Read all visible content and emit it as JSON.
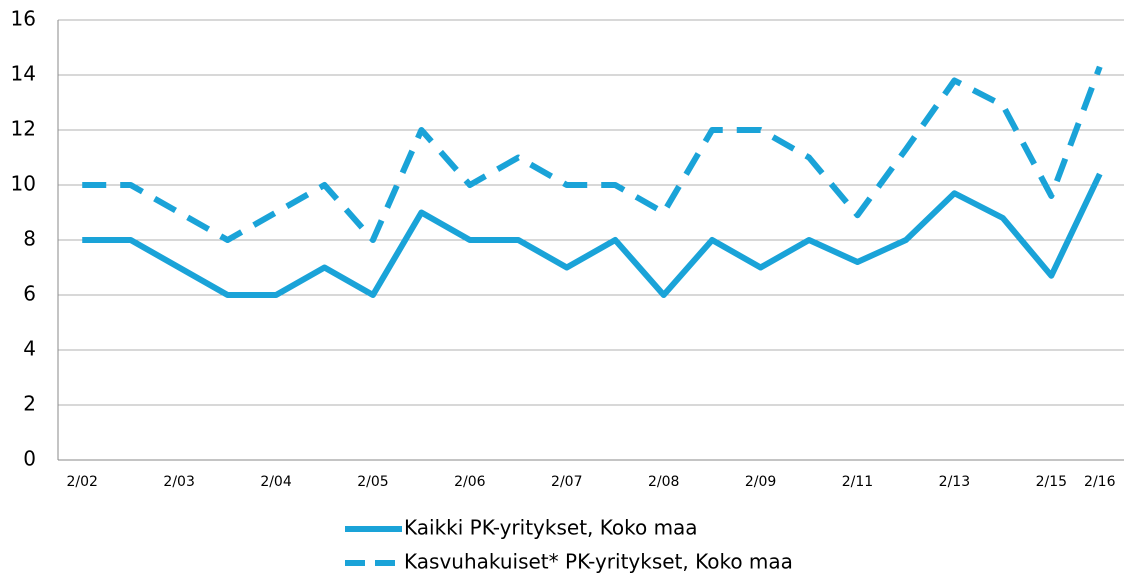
{
  "chart_data": {
    "type": "line",
    "categories": [
      "2/02",
      null,
      "2/03",
      null,
      "2/04",
      null,
      "2/05",
      null,
      "2/06",
      null,
      "2/07",
      null,
      "2/08",
      null,
      "2/09",
      null,
      "2/11",
      null,
      "2/13",
      null,
      "2/15",
      "2/16"
    ],
    "series": [
      {
        "name": "Kaikki PK-yritykset, Koko maa",
        "color": "#1aa3d8",
        "dash": false,
        "values": [
          8,
          8,
          7,
          6,
          6,
          7,
          6,
          9,
          8,
          8,
          7,
          8,
          6,
          8,
          7,
          8,
          7.2,
          8,
          9.7,
          8.8,
          6.7,
          10.4
        ]
      },
      {
        "name": "Kasvuhakuiset* PK-yritykset, Koko maa",
        "color": "#1aa3d8",
        "dash": true,
        "values": [
          10,
          10,
          9,
          8,
          9,
          10,
          8,
          12,
          10,
          11,
          10,
          10,
          9,
          12,
          12,
          11,
          8.9,
          11.3,
          13.8,
          12.9,
          9.6,
          14.3
        ]
      }
    ],
    "ylim": [
      0,
      16
    ],
    "yticks": [
      0,
      2,
      4,
      6,
      8,
      10,
      12,
      14,
      16
    ],
    "grid": true,
    "legend": "bottom"
  }
}
